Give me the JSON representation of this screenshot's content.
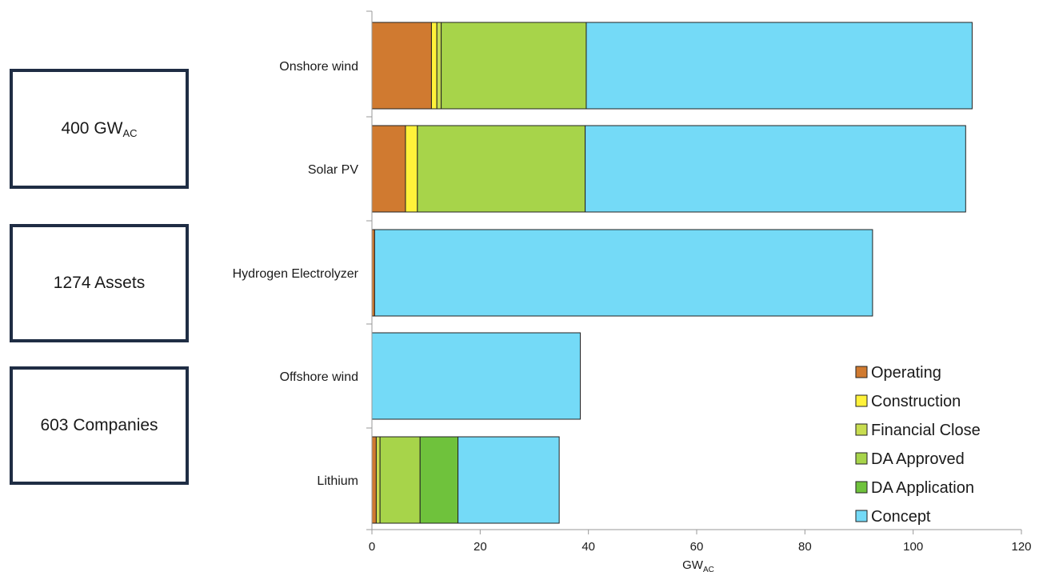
{
  "stats": {
    "capacity_value": "400 GW",
    "capacity_sub": "AC",
    "assets": "1274 Assets",
    "companies": "603 Companies"
  },
  "chart_data": {
    "type": "bar",
    "orientation": "horizontal",
    "stacked": true,
    "categories": [
      "Onshore wind",
      "Solar PV",
      "Hydrogen Electrolyzer",
      "Offshore wind",
      "Lithium"
    ],
    "series": [
      {
        "name": "Operating",
        "color": "#d07a30",
        "values": [
          11,
          6.2,
          0.5,
          0,
          0.8
        ]
      },
      {
        "name": "Construction",
        "color": "#fff23a",
        "values": [
          1,
          2.2,
          0,
          0,
          0
        ]
      },
      {
        "name": "Financial Close",
        "color": "#c8dd50",
        "values": [
          0.8,
          0,
          0,
          0,
          0.7
        ]
      },
      {
        "name": "DA Approved",
        "color": "#a7d44a",
        "values": [
          26.8,
          31,
          0,
          0,
          7.4
        ]
      },
      {
        "name": "DA Application",
        "color": "#6fc23c",
        "values": [
          0,
          0,
          0,
          0,
          7
        ]
      },
      {
        "name": "Concept",
        "color": "#74daf7",
        "values": [
          71.3,
          70.3,
          92,
          38.5,
          18.7
        ]
      }
    ],
    "xlabel": "GW",
    "xlabel_sub": "AC",
    "ylabel": "",
    "xlim": [
      0,
      120
    ],
    "xticks": [
      0,
      20,
      40,
      60,
      80,
      100,
      120
    ],
    "grid": false,
    "legend_position": "bottom-right"
  }
}
